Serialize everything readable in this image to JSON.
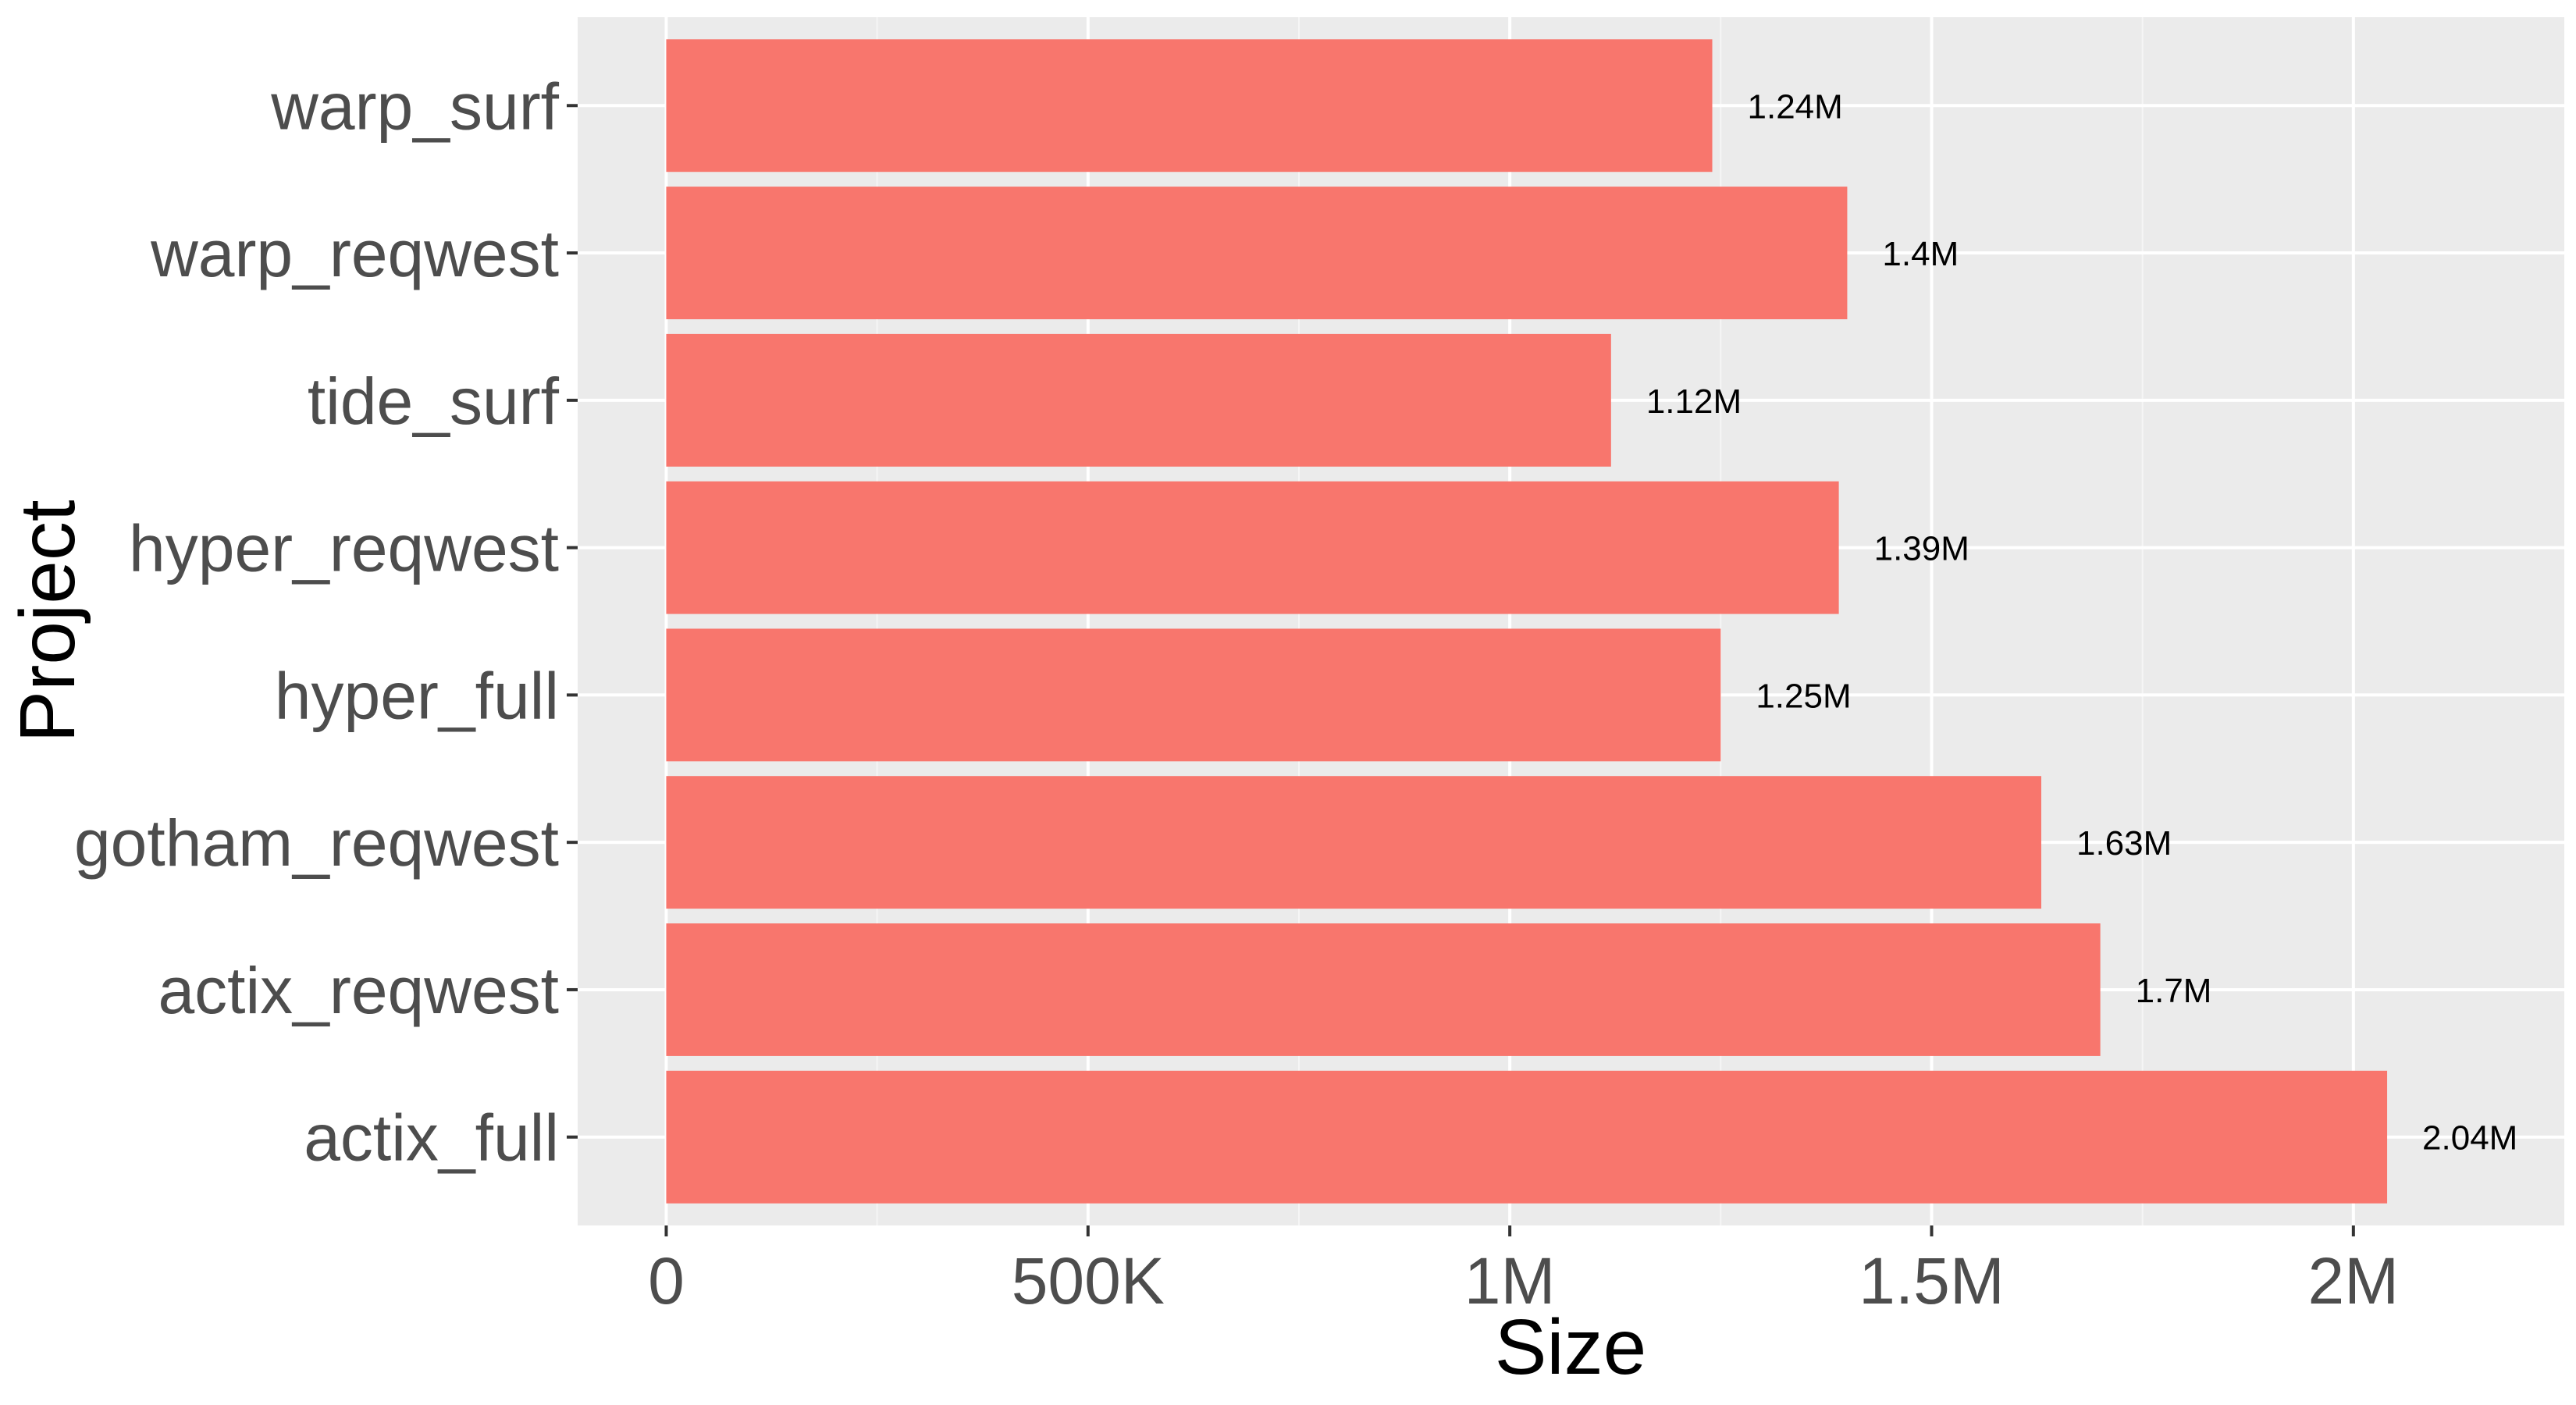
{
  "chart_data": {
    "type": "bar",
    "orientation": "horizontal",
    "categories": [
      "warp_surf",
      "warp_reqwest",
      "tide_surf",
      "hyper_reqwest",
      "hyper_full",
      "gotham_reqwest",
      "actix_reqwest",
      "actix_full"
    ],
    "values": [
      1240000,
      1400000,
      1120000,
      1390000,
      1250000,
      1630000,
      1700000,
      2040000
    ],
    "data_labels": [
      "1.24M",
      "1.4M",
      "1.12M",
      "1.39M",
      "1.25M",
      "1.63M",
      "1.7M",
      "2.04M"
    ],
    "xlabel": "Size",
    "ylabel": "Project",
    "xlim": [
      -105000,
      2250000
    ],
    "x_ticks": [
      0,
      500000,
      1000000,
      1500000,
      2000000
    ],
    "x_tick_labels": [
      "0",
      "500K",
      "1M",
      "1.5M",
      "2M"
    ],
    "x_minor_ticks": [
      250000,
      750000,
      1250000,
      1750000
    ],
    "grid": true,
    "legend": "none",
    "colors": {
      "bar": "#f8766d",
      "panel_background": "#ebebeb",
      "grid_major": "#ffffff",
      "grid_minor": "#f5f5f5",
      "tick_text": "#4d4d4d",
      "axis_ticks": "#333333"
    }
  }
}
